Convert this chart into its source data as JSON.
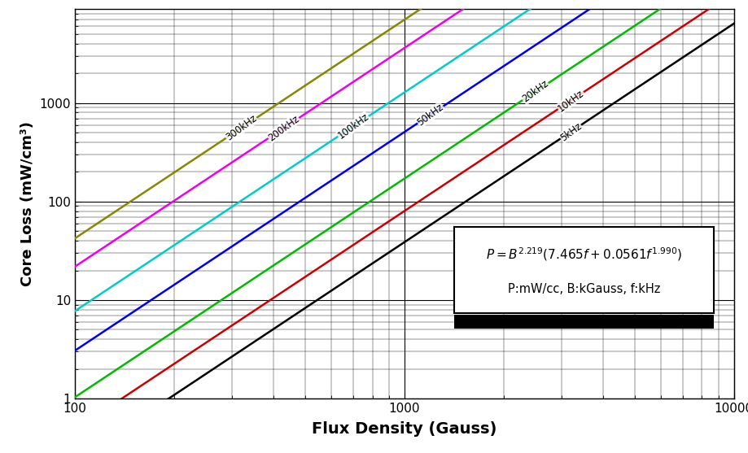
{
  "title": "",
  "xlabel": "Flux Density (Gauss)",
  "ylabel": "Core Loss (mW/cm³)",
  "xlim": [
    100,
    10000
  ],
  "ylim": [
    1,
    2000
  ],
  "frequencies": [
    5,
    10,
    20,
    50,
    100,
    200,
    300
  ],
  "freq_labels": [
    "5kHz",
    "10kHz",
    "20kHz",
    "50kHz",
    "100kHz",
    "200kHz",
    "300kHz"
  ],
  "line_colors": [
    "#000000",
    "#cc0000",
    "#00bb00",
    "#0000ee",
    "#00cccc",
    "#ee00ee",
    "#888800"
  ],
  "B_exp": 2.219,
  "coeff_a": 7.465,
  "coeff_b": 0.0561,
  "f_exp": 1.99,
  "equation_line2": "P:mW/cc, B:kGauss, f:kHz",
  "label_B_positions": {
    "5kHz": 3200,
    "10kHz": 3200,
    "20kHz": 2500,
    "50kHz": 1200,
    "100kHz": 700,
    "200kHz": 430,
    "300kHz": 320
  }
}
